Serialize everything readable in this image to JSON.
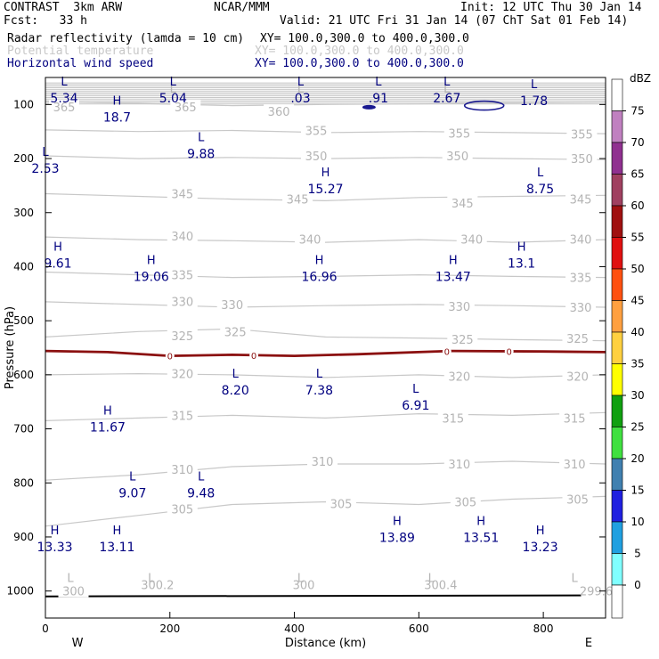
{
  "header": {
    "title": "CONTRAST  3km ARW",
    "center": "NCAR/MMM",
    "init": "Init: 12 UTC Thu 30 Jan 14",
    "fcst": "Fcst:   33 h",
    "valid": "Valid: 21 UTC Fri 31 Jan 14 (07 ChT Sat 01 Feb 14)",
    "fields": [
      {
        "name": "Radar reflectivity (lamda = 10 cm)",
        "xy": "XY= 100.0,300.0 to 400.0,300.0",
        "color": "#000000"
      },
      {
        "name": "Potential temperature",
        "xy": "XY= 100.0,300.0 to 400.0,300.0",
        "color": "#c8c8c8"
      },
      {
        "name": "Horizontal wind speed",
        "xy": "XY= 100.0,300.0 to 400.0,300.0",
        "color": "#000080"
      }
    ]
  },
  "chart_data": {
    "type": "cross-section",
    "xlabel": "Distance (km)",
    "ylabel": "Pressure (hPa)",
    "xlim": [
      0,
      900
    ],
    "ylim": [
      1050,
      50
    ],
    "x_ticks": [
      "0",
      "200",
      "400",
      "600",
      "800"
    ],
    "x_tick_values": [
      0,
      200,
      400,
      600,
      800
    ],
    "y_ticks": [
      "100",
      "200",
      "300",
      "400",
      "500",
      "600",
      "700",
      "800",
      "900",
      "1000"
    ],
    "y_tick_values": [
      100,
      200,
      300,
      400,
      500,
      600,
      700,
      800,
      900,
      1000
    ],
    "west_label": "W",
    "east_label": "E",
    "colorbar": {
      "unit": "dBZ",
      "levels": [
        "75",
        "70",
        "65",
        "60",
        "55",
        "50",
        "45",
        "40",
        "35",
        "30",
        "25",
        "20",
        "15",
        "10",
        "5",
        "0"
      ],
      "colors": [
        "#ffffff",
        "#c080c0",
        "#903090",
        "#a04060",
        "#a01010",
        "#e01010",
        "#ff5010",
        "#ffa040",
        "#ffd040",
        "#ffff00",
        "#10a010",
        "#40e040",
        "#4080b0",
        "#2020e0",
        "#20a0e0",
        "#80ffff"
      ]
    },
    "theta_contours": [
      {
        "label": "360",
        "points": [
          [
            0,
            95
          ],
          [
            150,
            98
          ],
          [
            300,
            102
          ],
          [
            450,
            100
          ],
          [
            600,
            99
          ],
          [
            750,
            97
          ],
          [
            900,
            96
          ]
        ]
      },
      {
        "label": "355",
        "points": [
          [
            0,
            147
          ],
          [
            150,
            150
          ],
          [
            300,
            148
          ],
          [
            450,
            152
          ],
          [
            600,
            150
          ],
          [
            750,
            152
          ],
          [
            900,
            154
          ]
        ]
      },
      {
        "label": "350",
        "points": [
          [
            0,
            195
          ],
          [
            150,
            200
          ],
          [
            300,
            198
          ],
          [
            450,
            200
          ],
          [
            600,
            198
          ],
          [
            750,
            200
          ],
          [
            900,
            202
          ]
        ]
      },
      {
        "label": "345",
        "points": [
          [
            0,
            265
          ],
          [
            150,
            270
          ],
          [
            300,
            275
          ],
          [
            450,
            278
          ],
          [
            600,
            272
          ],
          [
            750,
            270
          ],
          [
            900,
            268
          ]
        ]
      },
      {
        "label": "340",
        "points": [
          [
            0,
            345
          ],
          [
            150,
            350
          ],
          [
            300,
            352
          ],
          [
            450,
            355
          ],
          [
            600,
            350
          ],
          [
            750,
            355
          ],
          [
            900,
            350
          ]
        ]
      },
      {
        "label": "335",
        "points": [
          [
            0,
            410
          ],
          [
            150,
            415
          ],
          [
            300,
            420
          ],
          [
            450,
            418
          ],
          [
            600,
            415
          ],
          [
            750,
            418
          ],
          [
            900,
            420
          ]
        ]
      },
      {
        "label": "330",
        "points": [
          [
            0,
            465
          ],
          [
            150,
            470
          ],
          [
            300,
            475
          ],
          [
            450,
            472
          ],
          [
            600,
            470
          ],
          [
            750,
            472
          ],
          [
            900,
            475
          ]
        ]
      },
      {
        "label": "325",
        "points": [
          [
            0,
            530
          ],
          [
            150,
            520
          ],
          [
            300,
            515
          ],
          [
            450,
            530
          ],
          [
            600,
            532
          ],
          [
            750,
            535
          ],
          [
            900,
            537
          ]
        ]
      },
      {
        "label": "320",
        "points": [
          [
            0,
            600
          ],
          [
            150,
            598
          ],
          [
            300,
            600
          ],
          [
            450,
            605
          ],
          [
            600,
            600
          ],
          [
            750,
            605
          ],
          [
            900,
            600
          ]
        ]
      },
      {
        "label": "315",
        "points": [
          [
            0,
            685
          ],
          [
            150,
            680
          ],
          [
            300,
            675
          ],
          [
            450,
            680
          ],
          [
            600,
            672
          ],
          [
            750,
            675
          ],
          [
            900,
            670
          ]
        ]
      },
      {
        "label": "310",
        "points": [
          [
            0,
            795
          ],
          [
            150,
            785
          ],
          [
            300,
            770
          ],
          [
            450,
            765
          ],
          [
            600,
            765
          ],
          [
            750,
            760
          ],
          [
            900,
            765
          ]
        ]
      },
      {
        "label": "305",
        "points": [
          [
            0,
            880
          ],
          [
            150,
            860
          ],
          [
            300,
            840
          ],
          [
            450,
            835
          ],
          [
            600,
            840
          ],
          [
            750,
            830
          ],
          [
            900,
            825
          ]
        ]
      }
    ],
    "freezing_line": {
      "label": "0",
      "points": [
        [
          0,
          556
        ],
        [
          100,
          558
        ],
        [
          200,
          565
        ],
        [
          300,
          563
        ],
        [
          400,
          565
        ],
        [
          500,
          562
        ],
        [
          650,
          556
        ],
        [
          800,
          557
        ],
        [
          900,
          558
        ]
      ]
    },
    "ground": {
      "points": [
        [
          0,
          1010
        ],
        [
          900,
          1008
        ]
      ]
    },
    "reflectivity_blobs": [
      [
        520,
        105
      ],
      [
        705,
        102
      ]
    ],
    "contour_labels": [
      {
        "text": "365",
        "x": 30,
        "y": 104
      },
      {
        "text": "365",
        "x": 225,
        "y": 104
      },
      {
        "text": "360",
        "x": 375,
        "y": 113
      },
      {
        "text": "355",
        "x": 435,
        "y": 148
      },
      {
        "text": "355",
        "x": 665,
        "y": 153
      },
      {
        "text": "355",
        "x": 862,
        "y": 155
      },
      {
        "text": "350",
        "x": 435,
        "y": 195
      },
      {
        "text": "350",
        "x": 662,
        "y": 195
      },
      {
        "text": "350",
        "x": 862,
        "y": 200
      },
      {
        "text": "345",
        "x": 220,
        "y": 265
      },
      {
        "text": "345",
        "x": 405,
        "y": 275
      },
      {
        "text": "345",
        "x": 670,
        "y": 282
      },
      {
        "text": "345",
        "x": 860,
        "y": 275
      },
      {
        "text": "340",
        "x": 220,
        "y": 343
      },
      {
        "text": "340",
        "x": 425,
        "y": 349
      },
      {
        "text": "340",
        "x": 685,
        "y": 349
      },
      {
        "text": "340",
        "x": 860,
        "y": 349
      },
      {
        "text": "335",
        "x": 220,
        "y": 415
      },
      {
        "text": "335",
        "x": 860,
        "y": 420
      },
      {
        "text": "330",
        "x": 220,
        "y": 464
      },
      {
        "text": "330",
        "x": 300,
        "y": 470
      },
      {
        "text": "330",
        "x": 665,
        "y": 473
      },
      {
        "text": "330",
        "x": 860,
        "y": 475
      },
      {
        "text": "325",
        "x": 220,
        "y": 528
      },
      {
        "text": "325",
        "x": 305,
        "y": 520
      },
      {
        "text": "325",
        "x": 670,
        "y": 534
      },
      {
        "text": "325",
        "x": 855,
        "y": 533
      },
      {
        "text": "320",
        "x": 220,
        "y": 598
      },
      {
        "text": "320",
        "x": 665,
        "y": 603
      },
      {
        "text": "320",
        "x": 855,
        "y": 603
      },
      {
        "text": "315",
        "x": 220,
        "y": 675
      },
      {
        "text": "315",
        "x": 655,
        "y": 680
      },
      {
        "text": "315",
        "x": 850,
        "y": 680
      },
      {
        "text": "310",
        "x": 220,
        "y": 775
      },
      {
        "text": "310",
        "x": 445,
        "y": 760
      },
      {
        "text": "310",
        "x": 665,
        "y": 765
      },
      {
        "text": "310",
        "x": 850,
        "y": 765
      },
      {
        "text": "305",
        "x": 220,
        "y": 848
      },
      {
        "text": "305",
        "x": 475,
        "y": 838
      },
      {
        "text": "305",
        "x": 675,
        "y": 835
      },
      {
        "text": "305",
        "x": 855,
        "y": 830
      },
      {
        "text": "300",
        "x": 45,
        "y": 1000
      },
      {
        "text": "300.2",
        "x": 180,
        "y": 988
      },
      {
        "text": "300",
        "x": 415,
        "y": 988
      },
      {
        "text": "300.4",
        "x": 635,
        "y": 988
      },
      {
        "text": "299.6",
        "x": 885,
        "y": 1000
      }
    ],
    "theta_extrema": [
      {
        "kind": "L",
        "x": 205,
        "y": 70
      },
      {
        "kind": "L",
        "x": 410,
        "y": 70
      },
      {
        "kind": "L",
        "x": 645,
        "y": 70
      },
      {
        "kind": "L",
        "x": 40,
        "y": 975
      },
      {
        "kind": "L",
        "x": 170,
        "y": 975
      },
      {
        "kind": "L",
        "x": 410,
        "y": 975
      },
      {
        "kind": "L",
        "x": 620,
        "y": 975
      },
      {
        "kind": "L",
        "x": 850,
        "y": 975
      }
    ],
    "wind_extrema": [
      {
        "kind": "L",
        "value": "5.34",
        "x": 30,
        "y": 80
      },
      {
        "kind": "L",
        "value": "5.04",
        "x": 205,
        "y": 80
      },
      {
        "kind": "L",
        "value": ".03",
        "x": 410,
        "y": 80
      },
      {
        "kind": "L",
        "value": ".91",
        "x": 535,
        "y": 80
      },
      {
        "kind": "L",
        "value": "2.67",
        "x": 645,
        "y": 80
      },
      {
        "kind": "L",
        "value": "1.78",
        "x": 785,
        "y": 85
      },
      {
        "kind": "H",
        "value": "18.7",
        "x": 115,
        "y": 115
      },
      {
        "kind": "L",
        "value": "9.88",
        "x": 250,
        "y": 183
      },
      {
        "kind": "L",
        "value": "2.53",
        "x": 0,
        "y": 210
      },
      {
        "kind": "H",
        "value": "15.27",
        "x": 450,
        "y": 248
      },
      {
        "kind": "L",
        "value": "8.75",
        "x": 795,
        "y": 248
      },
      {
        "kind": "H",
        "value": "9.61",
        "x": 20,
        "y": 385
      },
      {
        "kind": "H",
        "value": "13.1",
        "x": 765,
        "y": 385
      },
      {
        "kind": "H",
        "value": "19.06",
        "x": 170,
        "y": 410
      },
      {
        "kind": "H",
        "value": "16.96",
        "x": 440,
        "y": 410
      },
      {
        "kind": "H",
        "value": "13.47",
        "x": 655,
        "y": 410
      },
      {
        "kind": "L",
        "value": "8.20",
        "x": 305,
        "y": 620
      },
      {
        "kind": "L",
        "value": "7.38",
        "x": 440,
        "y": 620
      },
      {
        "kind": "L",
        "value": "6.91",
        "x": 595,
        "y": 648
      },
      {
        "kind": "H",
        "value": "11.67",
        "x": 100,
        "y": 688
      },
      {
        "kind": "L",
        "value": "9.07",
        "x": 140,
        "y": 810
      },
      {
        "kind": "L",
        "value": "9.48",
        "x": 250,
        "y": 810
      },
      {
        "kind": "H",
        "value": "13.89",
        "x": 565,
        "y": 893
      },
      {
        "kind": "H",
        "value": "13.51",
        "x": 700,
        "y": 893
      },
      {
        "kind": "H",
        "value": "13.33",
        "x": 15,
        "y": 910
      },
      {
        "kind": "H",
        "value": "13.11",
        "x": 115,
        "y": 910
      },
      {
        "kind": "H",
        "value": "13.23",
        "x": 795,
        "y": 910
      }
    ]
  }
}
